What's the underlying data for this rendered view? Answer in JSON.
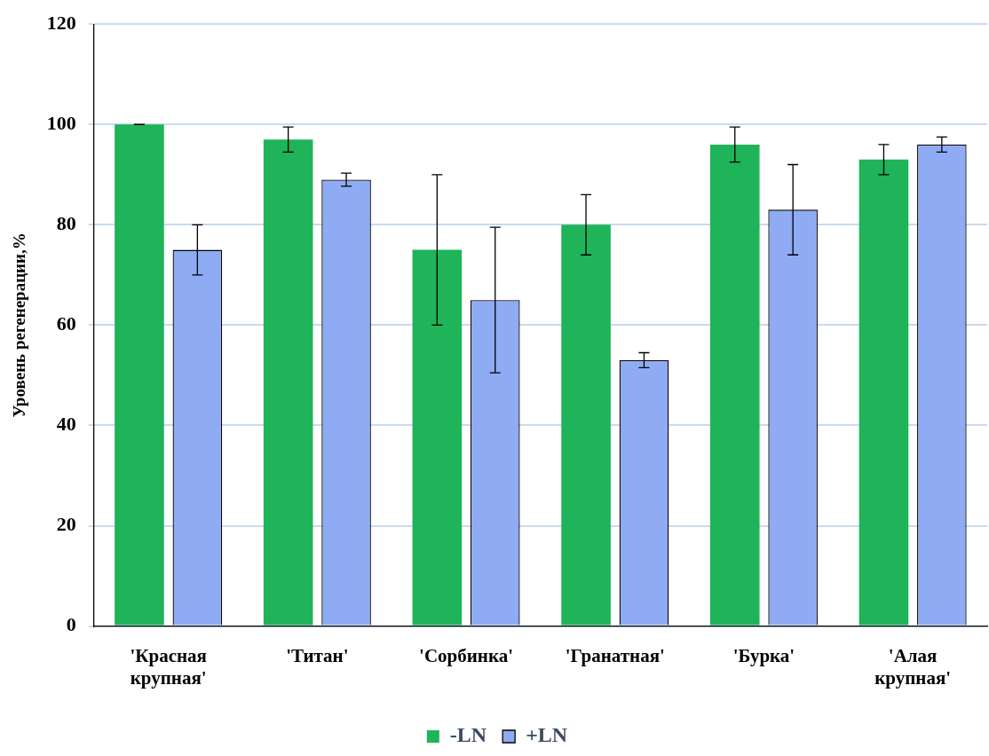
{
  "chart_data": {
    "type": "bar",
    "ylabel": "Уровень регенерации,%",
    "categories": [
      "'Красная крупная'",
      "'Титан'",
      "'Сорбинка'",
      "'Гранатная'",
      "'Бурка'",
      "'Алая крупная'"
    ],
    "series": [
      {
        "name": "-LN",
        "color": "#1fb35a",
        "values": [
          100,
          97,
          75,
          80,
          96,
          93
        ],
        "errors": [
          0,
          2.5,
          15,
          6,
          3.5,
          3
        ]
      },
      {
        "name": "+LN",
        "color": "#8eabf4",
        "values": [
          75,
          89,
          65,
          53,
          83,
          96
        ],
        "errors": [
          5,
          1.3,
          14.5,
          1.5,
          9,
          1.5
        ]
      }
    ],
    "ylim": [
      0,
      120
    ],
    "yticks": [
      0,
      20,
      40,
      60,
      80,
      100,
      120
    ],
    "grid": "y",
    "legend": "bottom"
  }
}
